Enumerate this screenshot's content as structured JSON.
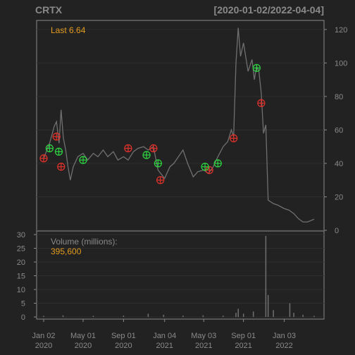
{
  "chart_data": {
    "type": "line",
    "title": "CRTX",
    "date_range": "[2020-01-02/2022-04-04]",
    "colors": {
      "background": "#222222",
      "price_line": "#707070",
      "volume_bars": "#707070",
      "buy_marker": "#2ecc40",
      "sell_marker": "#d9312b",
      "frame": "#8a8a8a",
      "annotation": "#e39c1f"
    },
    "price_panel": {
      "last_label": "Last 6.64",
      "ylim": [
        0,
        125
      ],
      "ytick_labels": [
        "0",
        "20",
        "40",
        "60",
        "80",
        "100",
        "120"
      ],
      "grid": true,
      "series": [
        {
          "x": [
            "2020-01-02",
            "2020-01-20",
            "2020-02-03",
            "2020-02-10",
            "2020-02-18",
            "2020-02-24",
            "2020-03-02",
            "2020-03-09",
            "2020-03-16",
            "2020-03-23",
            "2020-04-01",
            "2020-04-15",
            "2020-05-01",
            "2020-05-15",
            "2020-06-01",
            "2020-06-15",
            "2020-07-01",
            "2020-07-15",
            "2020-08-01",
            "2020-08-15",
            "2020-09-01",
            "2020-09-15",
            "2020-10-01",
            "2020-10-15",
            "2020-11-01",
            "2020-11-15",
            "2020-12-01",
            "2020-12-15",
            "2021-01-04",
            "2021-01-20",
            "2021-02-01",
            "2021-02-15",
            "2021-03-01",
            "2021-03-15",
            "2021-04-01",
            "2021-04-15",
            "2021-05-03",
            "2021-05-17",
            "2021-06-01",
            "2021-06-15",
            "2021-07-01",
            "2021-07-15",
            "2021-07-26",
            "2021-08-02",
            "2021-08-09",
            "2021-08-16",
            "2021-08-23",
            "2021-09-01",
            "2021-09-15",
            "2021-09-27",
            "2021-10-04",
            "2021-10-11",
            "2021-10-18",
            "2021-10-25",
            "2021-11-01",
            "2021-11-08",
            "2021-11-15",
            "2021-12-01",
            "2021-12-15",
            "2022-01-03",
            "2022-01-18",
            "2022-02-01",
            "2022-02-15",
            "2022-03-01",
            "2022-03-15",
            "2022-04-04"
          ],
          "y": [
            43,
            52,
            62,
            65,
            52,
            72,
            55,
            48,
            38,
            30,
            38,
            44,
            46,
            42,
            46,
            44,
            48,
            44,
            47,
            42,
            44,
            42,
            47,
            49,
            50,
            48,
            50,
            36,
            31,
            38,
            40,
            44,
            48,
            40,
            32,
            35,
            36,
            34,
            38,
            44,
            50,
            53,
            60,
            56,
            100,
            121,
            104,
            112,
            95,
            102,
            90,
            98,
            95,
            82,
            58,
            63,
            18,
            16,
            15,
            13,
            12,
            10,
            7,
            5,
            5,
            6.64
          ]
        }
      ],
      "buy_signals": [
        {
          "date": "2020-01-20",
          "price": 49
        },
        {
          "date": "2020-02-17",
          "price": 47
        },
        {
          "date": "2020-05-01",
          "price": 42
        },
        {
          "date": "2020-11-10",
          "price": 45
        },
        {
          "date": "2020-12-15",
          "price": 40
        },
        {
          "date": "2021-05-07",
          "price": 38
        },
        {
          "date": "2021-06-15",
          "price": 40
        },
        {
          "date": "2021-10-11",
          "price": 97
        }
      ],
      "sell_signals": [
        {
          "date": "2020-01-02",
          "price": 43
        },
        {
          "date": "2020-02-10",
          "price": 56
        },
        {
          "date": "2020-02-24",
          "price": 38
        },
        {
          "date": "2020-09-15",
          "price": 49
        },
        {
          "date": "2020-12-01",
          "price": 49
        },
        {
          "date": "2020-12-22",
          "price": 30
        },
        {
          "date": "2021-05-20",
          "price": 36
        },
        {
          "date": "2021-08-02",
          "price": 55
        },
        {
          "date": "2021-10-25",
          "price": 76
        }
      ]
    },
    "volume_panel": {
      "label": "Volume (millions):",
      "value_label": "395,600",
      "ylim": [
        0,
        30
      ],
      "ytick_labels": [
        "0",
        "5",
        "10",
        "15",
        "20",
        "25",
        "30"
      ],
      "grid": true,
      "series": [
        {
          "x": [
            "2020-01-02",
            "2020-03-01",
            "2020-06-01",
            "2020-09-01",
            "2020-11-15",
            "2021-01-01",
            "2021-03-01",
            "2021-05-01",
            "2021-07-01",
            "2021-08-09",
            "2021-08-16",
            "2021-09-01",
            "2021-10-01",
            "2021-11-08",
            "2021-11-15",
            "2021-12-01",
            "2022-01-20",
            "2022-02-01",
            "2022-03-01",
            "2022-04-04"
          ],
          "values": [
            0.4,
            0.6,
            0.4,
            0.5,
            1.2,
            0.8,
            0.5,
            0.6,
            0.5,
            1.5,
            3,
            1.2,
            2,
            29.5,
            8,
            2.5,
            5,
            1.5,
            0.8,
            0.4
          ]
        }
      ]
    },
    "x_ticks": [
      {
        "date": "2020-01-02",
        "label": "Jan 02",
        "year": "2020"
      },
      {
        "date": "2020-05-01",
        "label": "May 01",
        "year": "2020"
      },
      {
        "date": "2020-09-01",
        "label": "Sep 01",
        "year": "2020"
      },
      {
        "date": "2021-01-04",
        "label": "Jan 04",
        "year": "2021"
      },
      {
        "date": "2021-05-03",
        "label": "May 03",
        "year": "2021"
      },
      {
        "date": "2021-09-01",
        "label": "Sep 01",
        "year": "2021"
      },
      {
        "date": "2022-01-03",
        "label": "Jan 03",
        "year": "2022"
      }
    ],
    "x_start": "2020-01-02",
    "x_end": "2022-04-04"
  }
}
